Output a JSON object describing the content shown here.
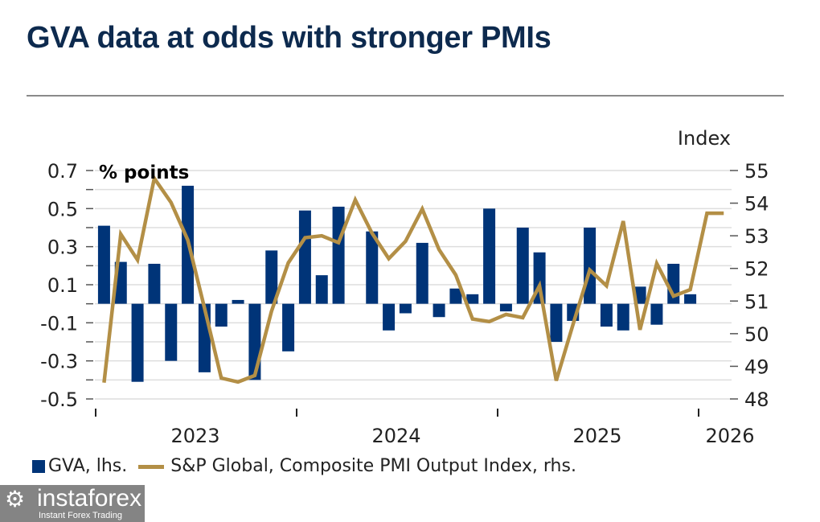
{
  "title": "GVA data at odds with stronger PMIs",
  "chart_data": {
    "type": "bar+line",
    "title": "GVA data at odds with stronger PMIs",
    "left_axis": {
      "label": "% points",
      "range": [
        -0.5,
        0.7
      ],
      "tick_labels": [
        "0.7",
        "0.5",
        "0.3",
        "0.1",
        "-0.1",
        "-0.3",
        "-0.5"
      ]
    },
    "right_axis": {
      "label": "Index",
      "range": [
        48,
        55
      ],
      "tick_labels": [
        "55",
        "54",
        "53",
        "52",
        "51",
        "50",
        "49",
        "48"
      ]
    },
    "x_tick_labels": [
      "2023",
      "2024",
      "2025",
      "2026"
    ],
    "grid": true,
    "legend_position": "bottom",
    "series": [
      {
        "name": "GVA, lhs.",
        "type": "bar",
        "axis": "left",
        "color": "#003478",
        "x": [
          "2023-01",
          "2023-02",
          "2023-03",
          "2023-04",
          "2023-05",
          "2023-06",
          "2023-07",
          "2023-08",
          "2023-09",
          "2023-10",
          "2023-11",
          "2023-12",
          "2024-01",
          "2024-02",
          "2024-03",
          "2024-04",
          "2024-05",
          "2024-06",
          "2024-07",
          "2024-08",
          "2024-09",
          "2024-10",
          "2024-11",
          "2024-12",
          "2025-01",
          "2025-02",
          "2025-03",
          "2025-04",
          "2025-05",
          "2025-06",
          "2025-07",
          "2025-08",
          "2025-09",
          "2025-10",
          "2025-11",
          "2025-12"
        ],
        "values": [
          0.41,
          0.22,
          -0.41,
          0.21,
          -0.3,
          0.62,
          -0.36,
          -0.12,
          0.02,
          -0.4,
          0.28,
          -0.25,
          0.49,
          0.15,
          0.51,
          0.0,
          0.38,
          -0.14,
          -0.05,
          0.32,
          -0.07,
          0.08,
          0.05,
          0.5,
          -0.04,
          0.4,
          0.27,
          -0.2,
          -0.09,
          0.4,
          -0.12,
          -0.14,
          0.09,
          -0.11,
          0.21,
          0.05
        ]
      },
      {
        "name": "S&P Global, Composite PMI Output Index, rhs.",
        "type": "line",
        "axis": "right",
        "color": "#b38f46",
        "x": [
          "2023-01",
          "2023-02",
          "2023-03",
          "2023-04",
          "2023-05",
          "2023-06",
          "2023-07",
          "2023-08",
          "2023-09",
          "2023-10",
          "2023-11",
          "2023-12",
          "2024-01",
          "2024-02",
          "2024-03",
          "2024-04",
          "2024-05",
          "2024-06",
          "2024-07",
          "2024-08",
          "2024-09",
          "2024-10",
          "2024-11",
          "2024-12",
          "2025-01",
          "2025-02",
          "2025-03",
          "2025-04",
          "2025-05",
          "2025-06",
          "2025-07",
          "2025-08",
          "2025-09",
          "2025-10",
          "2025-11",
          "2025-12",
          "2026-01",
          "2026-02"
        ],
        "values": [
          48.5,
          53.05,
          52.26,
          54.76,
          54.02,
          52.87,
          50.78,
          48.64,
          48.52,
          48.72,
          50.69,
          52.17,
          52.94,
          53.0,
          52.79,
          54.1,
          53.08,
          52.3,
          52.83,
          53.82,
          52.58,
          51.8,
          50.45,
          50.37,
          50.59,
          50.49,
          51.47,
          48.56,
          50.28,
          51.95,
          51.47,
          53.45,
          50.12,
          52.15,
          51.15,
          51.35,
          53.69,
          53.69
        ]
      }
    ]
  },
  "legend": {
    "bar_label": "GVA, lhs.",
    "line_label": "S&P Global, Composite PMI Output Index, rhs."
  },
  "watermark": {
    "name": "instaforex",
    "tagline": "Instant Forex Trading"
  }
}
